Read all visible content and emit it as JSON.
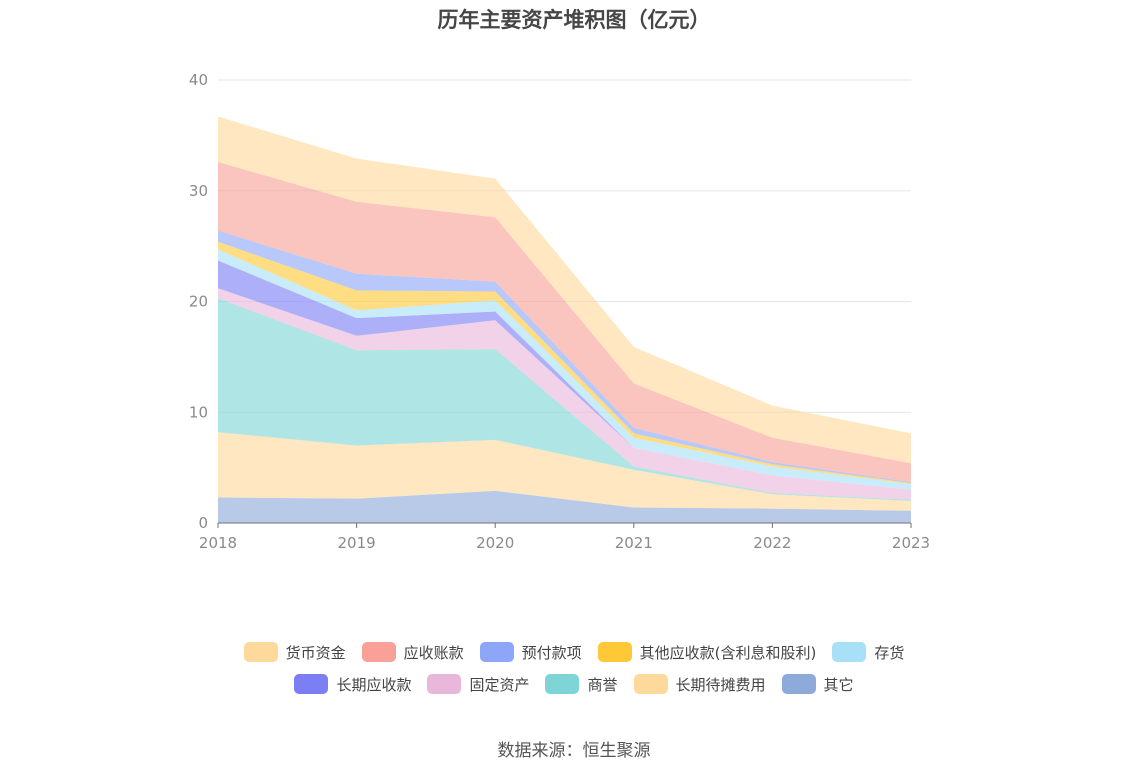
{
  "chart_data": {
    "type": "area",
    "stacked": true,
    "title": "历年主要资产堆积图（亿元）",
    "x": [
      "2018",
      "2019",
      "2020",
      "2021",
      "2022",
      "2023"
    ],
    "ylim": [
      0,
      40
    ],
    "yticks": [
      0,
      10,
      20,
      30,
      40
    ],
    "grid": true,
    "legend_position": "bottom",
    "series": [
      {
        "name": "其它",
        "color": "#8eaadb",
        "values": [
          2.3,
          2.2,
          2.9,
          1.4,
          1.3,
          1.1
        ]
      },
      {
        "name": "长期待摊费用",
        "color": "#fdd99b",
        "values": [
          5.9,
          4.8,
          4.6,
          3.4,
          1.3,
          0.9
        ]
      },
      {
        "name": "商誉",
        "color": "#7fd5d5",
        "values": [
          12.1,
          8.6,
          8.2,
          0.3,
          0.1,
          0.1
        ]
      },
      {
        "name": "固定资产",
        "color": "#e8b7da",
        "values": [
          0.9,
          1.3,
          2.6,
          1.7,
          1.6,
          0.9
        ]
      },
      {
        "name": "长期应收款",
        "color": "#7b7ff3",
        "values": [
          2.5,
          1.6,
          0.8,
          0.0,
          0.0,
          0.0
        ]
      },
      {
        "name": "存货",
        "color": "#a8e0f8",
        "values": [
          1.0,
          0.7,
          1.0,
          0.9,
          0.8,
          0.5
        ]
      },
      {
        "name": "其他应收款(含利息和股利)",
        "color": "#ffc837",
        "values": [
          0.7,
          1.8,
          0.8,
          0.4,
          0.2,
          0.1
        ]
      },
      {
        "name": "预付款项",
        "color": "#8da6f8",
        "values": [
          1.0,
          1.5,
          0.9,
          0.5,
          0.2,
          0.1
        ]
      },
      {
        "name": "应收账款",
        "color": "#f9a197",
        "values": [
          6.2,
          6.5,
          5.8,
          4.0,
          2.2,
          1.7
        ]
      },
      {
        "name": "货币资金",
        "color": "#fdd99b",
        "values": [
          4.1,
          3.9,
          3.5,
          3.3,
          2.9,
          2.7
        ]
      }
    ],
    "legend_order": [
      "货币资金",
      "应收账款",
      "预付款项",
      "其他应收款(含利息和股利)",
      "存货",
      "长期应收款",
      "固定资产",
      "商誉",
      "长期待摊费用",
      "其它"
    ]
  },
  "source": "数据来源：恒生聚源"
}
